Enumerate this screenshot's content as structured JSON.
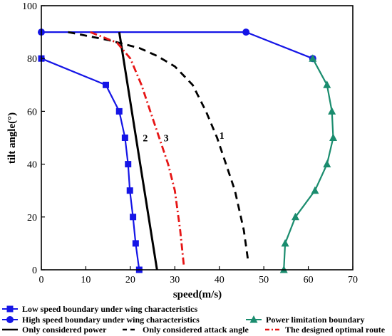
{
  "chart_data": {
    "type": "line",
    "xlabel": "speed(m/s)",
    "ylabel": "tilt angle(°)",
    "xlim": [
      0,
      70
    ],
    "ylim": [
      0,
      100
    ],
    "xticks": [
      "0",
      "10",
      "20",
      "30",
      "40",
      "50",
      "60",
      "70"
    ],
    "yticks": [
      "0",
      "20",
      "40",
      "60",
      "80",
      "100"
    ],
    "grid": false,
    "legend_position": "bottom",
    "series": [
      {
        "name": "Low speed boundary under wing characteristics",
        "color": "#1515e6",
        "dash": "solid",
        "marker": "square",
        "x": [
          0,
          14.5,
          17.5,
          18.8,
          19.5,
          19.9,
          20.6,
          21.2,
          22.0
        ],
        "y": [
          80,
          70,
          60,
          50,
          40,
          30,
          20,
          10,
          0
        ]
      },
      {
        "name": "High speed boundary under wing characteristics",
        "color": "#1515e6",
        "dash": "solid",
        "marker": "circle",
        "x": [
          0,
          46,
          61
        ],
        "y": [
          90,
          90,
          80
        ]
      },
      {
        "name": "Power limitation boundary",
        "color": "#1a8c6e",
        "dash": "solid",
        "marker": "triangle",
        "x": [
          61,
          64.2,
          65.3,
          65.6,
          64.2,
          61.5,
          57.1,
          54.8,
          54.5
        ],
        "y": [
          80,
          70,
          60,
          50,
          40,
          30,
          20,
          10,
          0
        ]
      },
      {
        "name": "Only considered power",
        "color": "#000000",
        "dash": "solid",
        "marker": "none",
        "x": [
          17.5,
          26
        ],
        "y": [
          90,
          0
        ]
      },
      {
        "name": "Only considered attack angle",
        "color": "#000000",
        "dash": "long",
        "marker": "none",
        "x": [
          6,
          15,
          22,
          26,
          30,
          34,
          37,
          39.5,
          41.5,
          43.5,
          45.5,
          46.5
        ],
        "y": [
          90,
          87,
          84,
          81,
          77,
          70,
          60,
          50,
          40,
          30,
          15,
          3
        ]
      },
      {
        "name": "The designed optimal route",
        "color": "#e61515",
        "dash": "dashdot",
        "marker": "none",
        "x": [
          11,
          17,
          20,
          22.5,
          24.5,
          26.5,
          28.5,
          30,
          31.2,
          32
        ],
        "y": [
          90,
          86,
          80,
          70,
          60,
          50,
          40,
          30,
          15,
          2
        ]
      }
    ],
    "annotations": [
      {
        "text": "1",
        "x": 40,
        "y": 51
      },
      {
        "text": "2",
        "x": 22.8,
        "y": 50
      },
      {
        "text": "3",
        "x": 27.5,
        "y": 50
      }
    ]
  }
}
